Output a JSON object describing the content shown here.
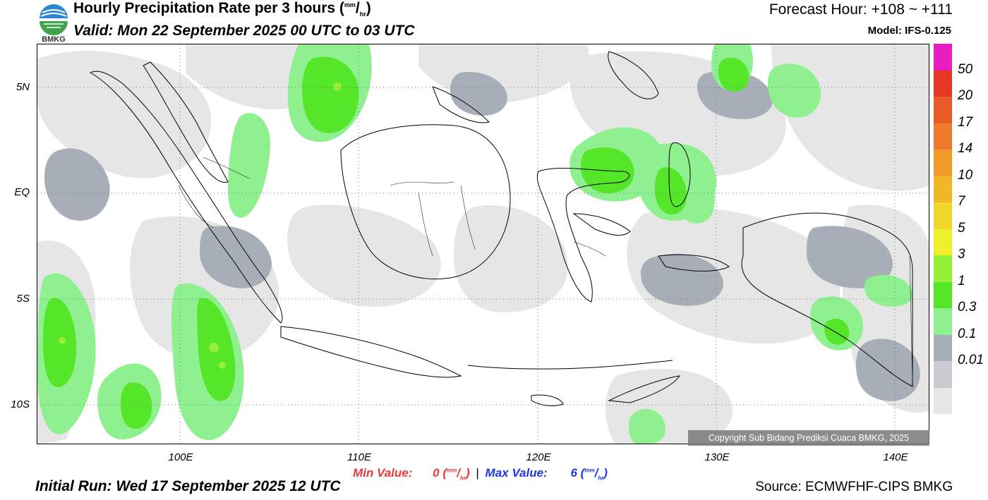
{
  "header": {
    "title_main": "Hourly Precipitation Rate per 3 hours (",
    "title_unit_num": "mm",
    "title_unit_den": "hr",
    "title_close": ")",
    "valid": "Valid: Mon 22 September 2025 00 UTC to 03 UTC",
    "forecast_hour": "Forecast Hour: +108 ~ +111",
    "model": "Model: IFS-0.125"
  },
  "logo": {
    "text": "BMKG",
    "icon": "bmkg-logo-icon"
  },
  "axes": {
    "lat_labels": [
      "5N",
      "EQ",
      "5S",
      "10S"
    ],
    "lon_labels": [
      "100E",
      "110E",
      "120E",
      "130E",
      "140E"
    ]
  },
  "colorbar": {
    "labels": [
      "50",
      "20",
      "17",
      "14",
      "10",
      "7",
      "5",
      "3",
      "1",
      "0.3",
      "0.1",
      "0.01"
    ],
    "colors": [
      "#e81fbe",
      "#e43525",
      "#e85a26",
      "#ee7b2b",
      "#f09a2a",
      "#f0b829",
      "#f0d52a",
      "#eef02a",
      "#96ef37",
      "#55e62a",
      "#8ff08f",
      "#a8aeb8",
      "#c8ccd0",
      "#e6e6e6"
    ]
  },
  "stats": {
    "min_label": "Min Value:",
    "min_value": "0",
    "max_label": "Max Value:",
    "max_value": "6",
    "unit_num": "mm",
    "unit_den": "hr",
    "separator": "|"
  },
  "footer": {
    "initial_run": "Initial Run: Wed 17 September 2025 12 UTC",
    "source": "Source: ECMWFHF-CIPS BMKG",
    "copyright": "Copyright Sub Bidang Prediksi Cuaca BMKG, 2025"
  }
}
